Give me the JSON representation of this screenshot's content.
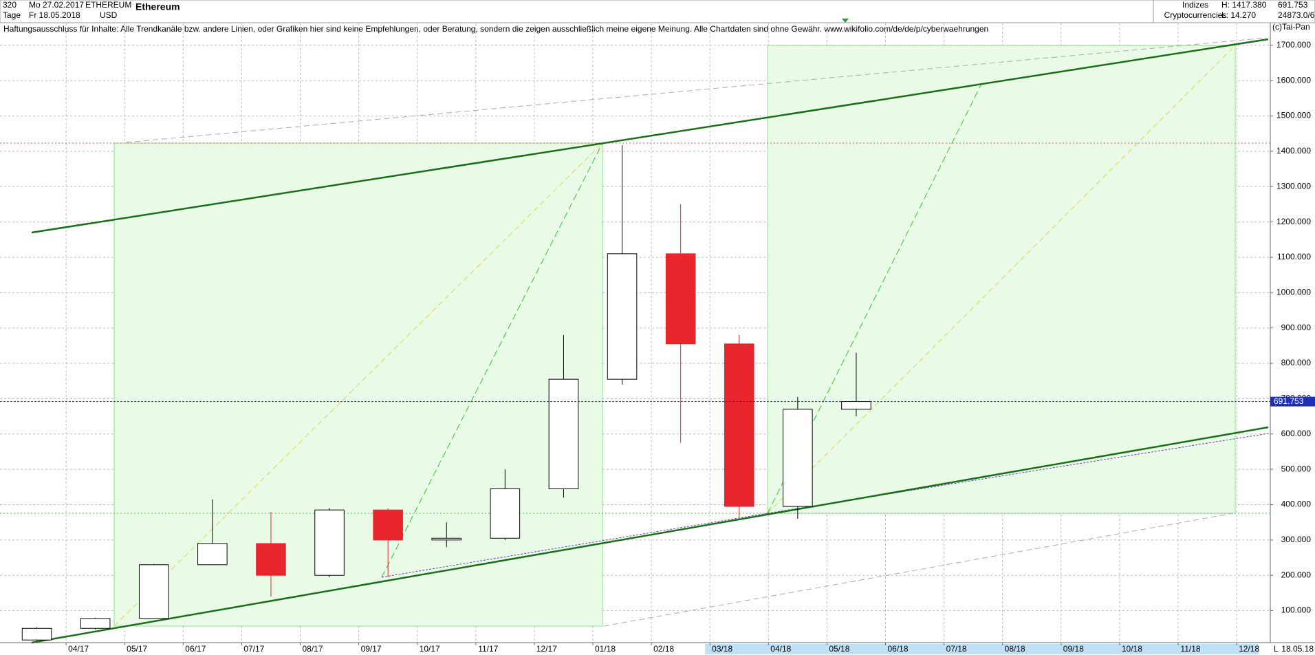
{
  "chart_data": {
    "type": "candlestick",
    "header": {
      "interval_count": "320",
      "interval_unit": "Tage",
      "start_date": "Mo 27.02.2017",
      "end_date": "Fr 18.05.2018",
      "symbol": "ETHEREUM",
      "currency": "USD",
      "name": "Ethereum",
      "group": "Indizes",
      "subgroup": "Cryptocurrencies",
      "high_label": "H: 1417.380",
      "low_label": "L: 14.270",
      "last_label": "691.753",
      "volume_label": "24873.0/6",
      "disclaimer": "Haftungsausschluss für Inhalte: Alle Trendkanäle bzw. andere Linien, oder Grafiken hier sind keine Empfehlungen, oder Beratung, sondern die zeigen ausschließlich meine eigene Meinung. Alle Chartdaten sind ohne Gewähr.  www.wikifolio.com/de/de/p/cyberwaehrungen",
      "copyright": "(c)Tai-Pan",
      "footer_date": "18.05.18",
      "footer_scale": "L"
    },
    "categories": [
      null,
      "04/17",
      "05/17",
      "06/17",
      "07/17",
      "08/17",
      "09/17",
      "10/17",
      "11/17",
      "12/17",
      "01/18",
      "02/18",
      "03/18",
      "04/18",
      "05/18",
      "06/18",
      "07/18",
      "08/18",
      "09/18",
      "10/18",
      "11/18",
      "12/18"
    ],
    "open": [
      17,
      50,
      78,
      230,
      290,
      200,
      385,
      300,
      305,
      445,
      755,
      1110,
      855,
      395,
      670,
      null,
      null,
      null,
      null,
      null,
      null,
      null
    ],
    "high": [
      53,
      80,
      232,
      415,
      380,
      390,
      390,
      350,
      500,
      880,
      1417,
      1250,
      880,
      705,
      830,
      null,
      null,
      null,
      null,
      null,
      null,
      null
    ],
    "low": [
      15,
      47,
      77,
      230,
      140,
      195,
      195,
      280,
      300,
      420,
      740,
      575,
      365,
      360,
      650,
      null,
      null,
      null,
      null,
      null,
      null,
      null
    ],
    "close": [
      50,
      78,
      230,
      290,
      200,
      385,
      300,
      305,
      445,
      755,
      1110,
      855,
      395,
      670,
      692,
      null,
      null,
      null,
      null,
      null,
      null,
      null
    ],
    "up_color": "#000000",
    "down_color": "#e8262b",
    "current_value": 691.753,
    "ylim": [
      10,
      1730
    ],
    "yticks": [
      {
        "value": 100,
        "label": "100.000"
      },
      {
        "value": 200,
        "label": "200.000"
      },
      {
        "value": 300,
        "label": "300.000"
      },
      {
        "value": 400,
        "label": "400.000"
      },
      {
        "value": 500,
        "label": "500.000"
      },
      {
        "value": 600,
        "label": "600.000"
      },
      {
        "value": 700,
        "label": "700.000"
      },
      {
        "value": 800,
        "label": "800.000"
      },
      {
        "value": 900,
        "label": "900.000"
      },
      {
        "value": 1000,
        "label": "1000.000"
      },
      {
        "value": 1100,
        "label": "1100.000"
      },
      {
        "value": 1200,
        "label": "1200.000"
      },
      {
        "value": 1300,
        "label": "1300.000"
      },
      {
        "value": 1400,
        "label": "1400.000"
      },
      {
        "value": 1500,
        "label": "1500.000"
      },
      {
        "value": 1600,
        "label": "1600.000"
      },
      {
        "value": 1700,
        "label": "1700.000"
      }
    ],
    "grid": true
  }
}
